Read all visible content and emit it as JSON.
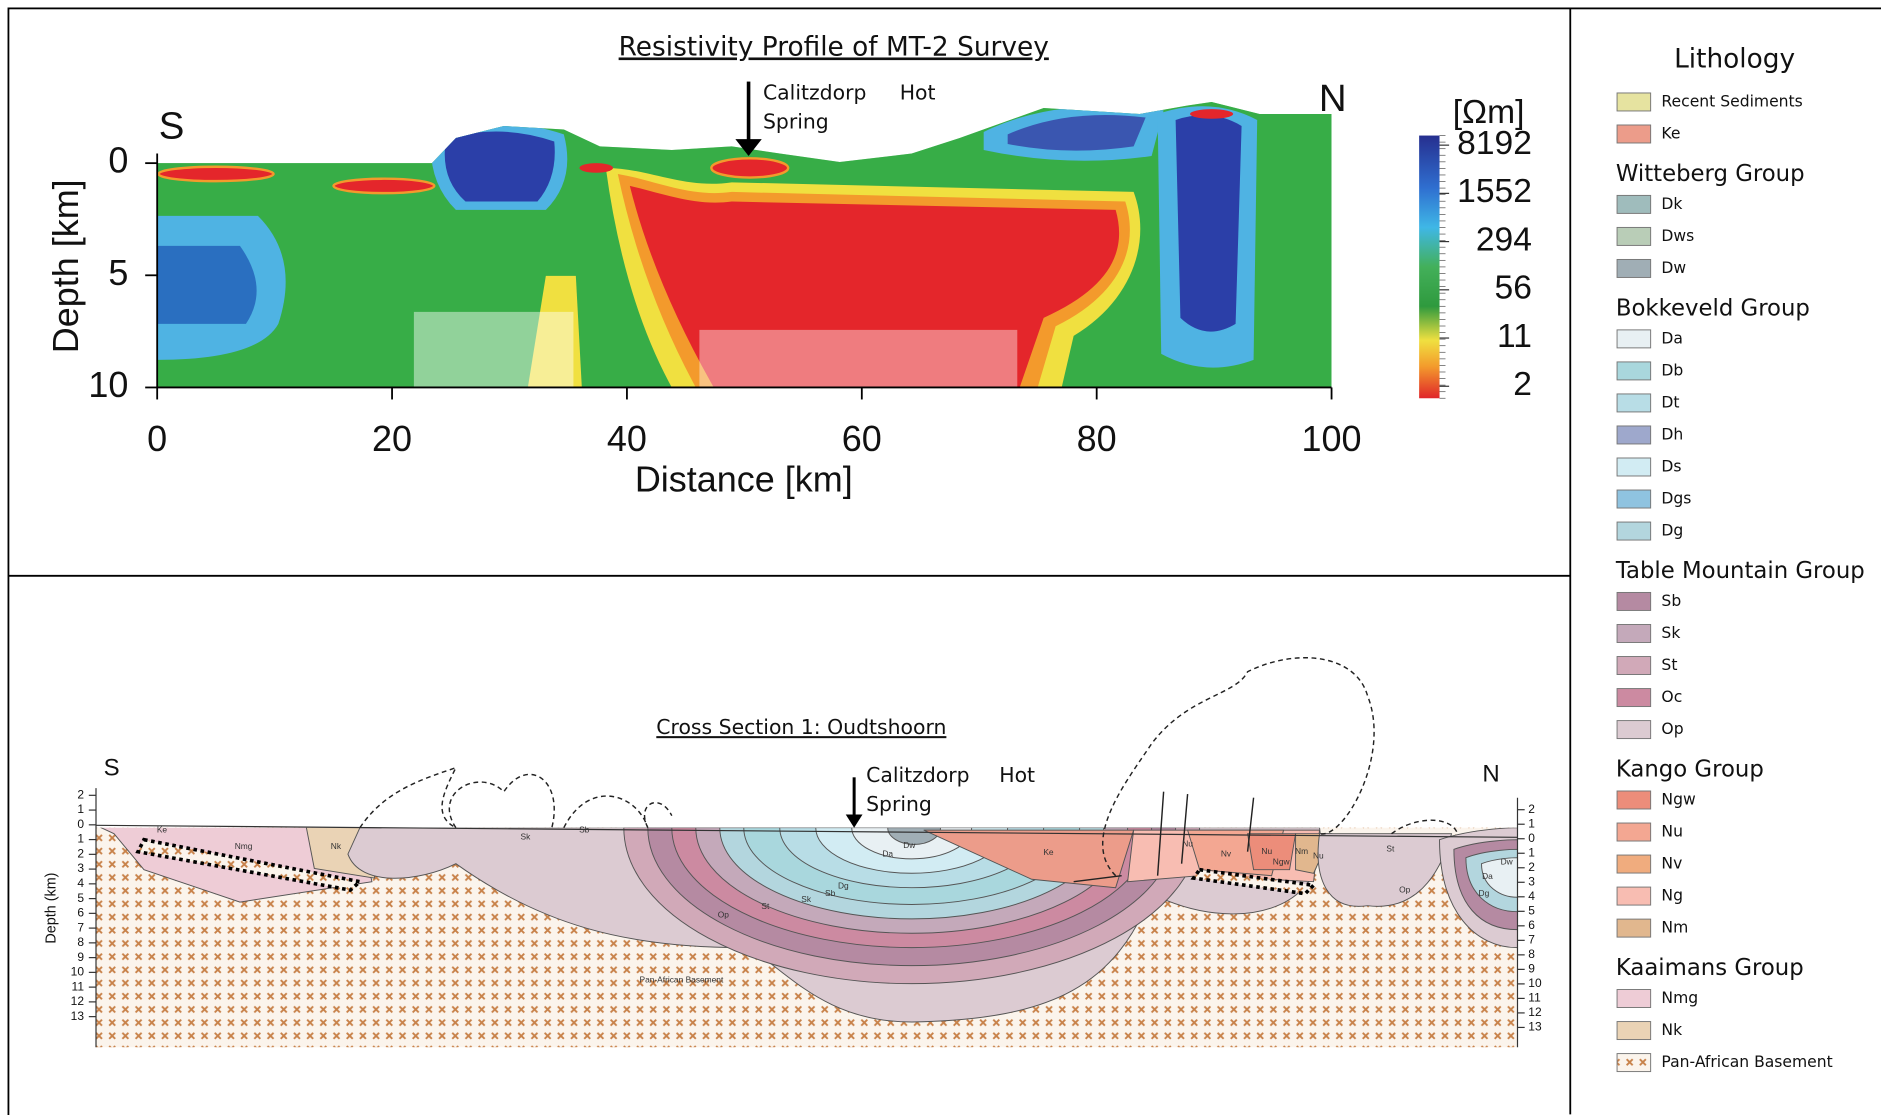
{
  "resistivity_profile": {
    "title": "Resistivity Profile of MT-2 Survey",
    "left_label": "S",
    "right_label": "N",
    "annotation": [
      "Calitzdorp",
      "Hot",
      "Spring"
    ],
    "y_axis_label": "Depth [km]",
    "x_axis_label": "Distance [km]",
    "xlim": [
      0,
      100
    ],
    "xticks": [
      0,
      20,
      40,
      60,
      80,
      100
    ],
    "ylim": [
      0,
      10
    ],
    "yticks": [
      0,
      5,
      10
    ],
    "colorbar": {
      "unit": "[Ωm]",
      "ticks": [
        8192,
        1552,
        294,
        56,
        11,
        2
      ]
    }
  },
  "cross_section": {
    "title": "Cross Section 1: Oudtshoorn",
    "left_label": "S",
    "right_label": "N",
    "annotation": [
      "Calitzdorp",
      "Hot",
      "Spring"
    ],
    "y_axis_label": "Depth (km)",
    "depth_ticks": [
      2,
      1,
      0,
      1,
      2,
      3,
      4,
      5,
      6,
      7,
      8,
      9,
      10,
      11,
      12,
      13
    ],
    "unit_labels": [
      "Ke",
      "Nmg",
      "Nk",
      "Sk",
      "Sb",
      "Op",
      "St",
      "Sk",
      "Sb",
      "Dg",
      "Da",
      "Dw",
      "Ke",
      "Pan-African Basement",
      "Nu",
      "Nv",
      "Nu",
      "Ngw",
      "Nm",
      "Nu",
      "St",
      "Op",
      "Da",
      "Dw",
      "Dg"
    ]
  },
  "legend": {
    "title": "Lithology",
    "items": [
      {
        "label": "Recent Sediments",
        "color": "#e6e3a0"
      },
      {
        "label": "Ke",
        "color": "#ec9c8a"
      }
    ],
    "groups": [
      {
        "name": "Witteberg Group",
        "items": [
          {
            "label": "Dk",
            "color": "#9fbcbc"
          },
          {
            "label": "Dws",
            "color": "#b9cdb7"
          },
          {
            "label": "Dw",
            "color": "#a0aeb5"
          }
        ]
      },
      {
        "name": "Bokkeveld Group",
        "items": [
          {
            "label": "Da",
            "color": "#e8f0f3"
          },
          {
            "label": "Db",
            "color": "#a9d7dd"
          },
          {
            "label": "Dt",
            "color": "#b8dde6"
          },
          {
            "label": "Dh",
            "color": "#9ea8cc"
          },
          {
            "label": "Ds",
            "color": "#d2ecf3"
          },
          {
            "label": "Dgs",
            "color": "#8fc3e0"
          },
          {
            "label": "Dg",
            "color": "#b3d6de"
          }
        ]
      },
      {
        "name": "Table Mountain Group",
        "items": [
          {
            "label": "Sb",
            "color": "#b58aa2"
          },
          {
            "label": "Sk",
            "color": "#c4a9ba"
          },
          {
            "label": "St",
            "color": "#d1a9b8"
          },
          {
            "label": "Oc",
            "color": "#cc8aa1"
          },
          {
            "label": "Op",
            "color": "#dccbd2"
          }
        ]
      },
      {
        "name": "Kango Group",
        "items": [
          {
            "label": "Ngw",
            "color": "#ec8d7a"
          },
          {
            "label": "Nu",
            "color": "#f3a792"
          },
          {
            "label": "Nv",
            "color": "#f0ac7e"
          },
          {
            "label": "Ng",
            "color": "#f8bdb2"
          },
          {
            "label": "Nm",
            "color": "#e1b78e"
          }
        ]
      },
      {
        "name": "Kaaimans Group",
        "items": [
          {
            "label": "Nmg",
            "color": "#eeccd6"
          },
          {
            "label": "Nk",
            "color": "#ead3b5"
          },
          {
            "label": "Pan-African Basement",
            "color": "pattern"
          }
        ]
      }
    ]
  }
}
